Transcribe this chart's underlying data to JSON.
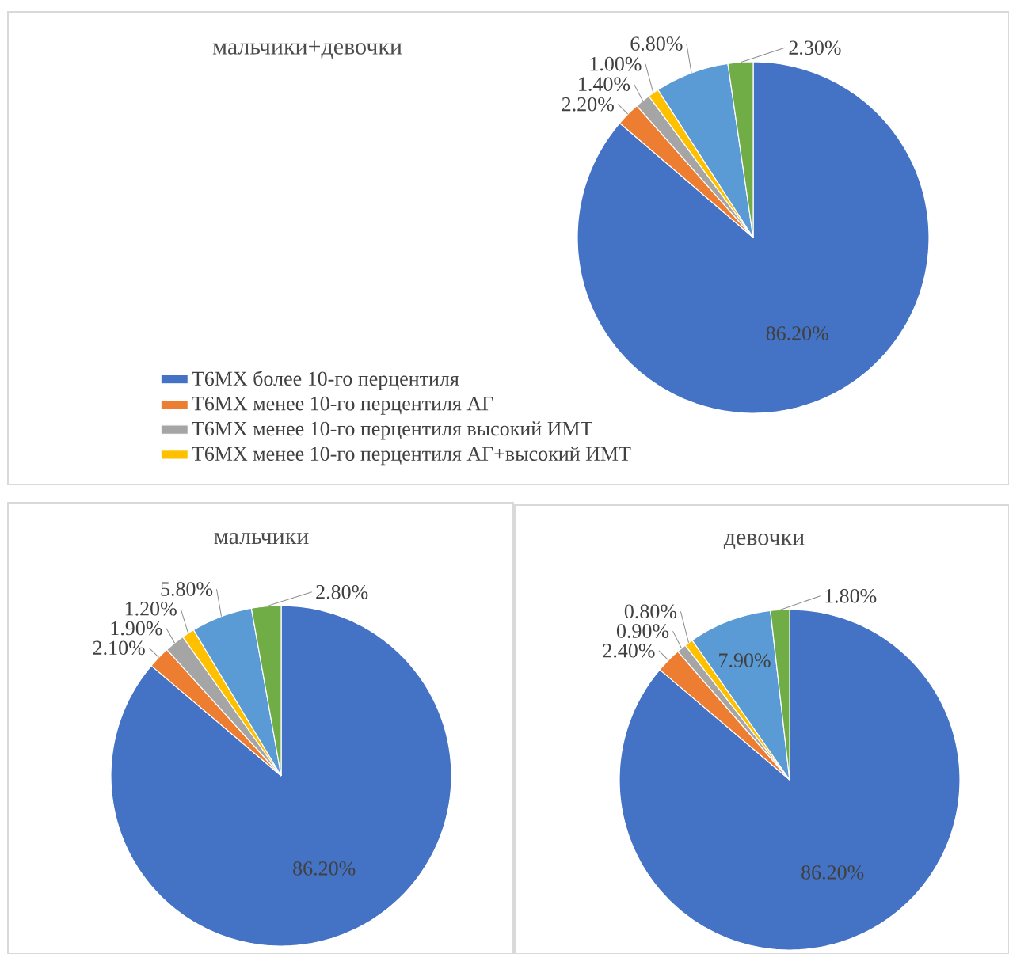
{
  "chart_data": [
    {
      "type": "pie",
      "title": "мальчики+девочки",
      "categories": [
        "Т6МХ более 10-го перцентиля",
        "Т6МХ менее 10-го перцентиля АГ",
        "Т6МХ менее 10-го перцентиля высокий ИМТ",
        "Т6МХ менее 10-го перцентиля АГ+высокий ИМТ",
        null,
        null
      ],
      "values": [
        86.2,
        2.2,
        1.4,
        1.0,
        6.8,
        2.3
      ],
      "value_labels": [
        "86.20%",
        "2.20%",
        "1.40%",
        "1.00%",
        "6.80%",
        "2.30%"
      ],
      "colors": [
        "#4472c4",
        "#ed7d31",
        "#a5a5a5",
        "#ffc000",
        "#5b9bd5",
        "#70ad47"
      ],
      "legend": "bottom left"
    },
    {
      "type": "pie",
      "title": "мальчики",
      "categories": [
        null,
        null,
        null,
        null,
        null,
        null
      ],
      "values": [
        86.2,
        2.1,
        1.9,
        1.2,
        5.8,
        2.8
      ],
      "value_labels": [
        "86.20%",
        "2.10%",
        "1.90%",
        "1.20%",
        "5.80%",
        "2.80%"
      ],
      "colors": [
        "#4472c4",
        "#ed7d31",
        "#a5a5a5",
        "#ffc000",
        "#5b9bd5",
        "#70ad47"
      ]
    },
    {
      "type": "pie",
      "title": "девочки",
      "categories": [
        null,
        null,
        null,
        null,
        null,
        null
      ],
      "values": [
        86.2,
        2.4,
        0.9,
        0.8,
        7.9,
        1.8
      ],
      "value_labels": [
        "86.20%",
        "2.40%",
        "0.90%",
        "0.80%",
        "7.90%",
        "1.80%"
      ],
      "colors": [
        "#4472c4",
        "#ed7d31",
        "#a5a5a5",
        "#ffc000",
        "#5b9bd5",
        "#70ad47"
      ]
    }
  ]
}
